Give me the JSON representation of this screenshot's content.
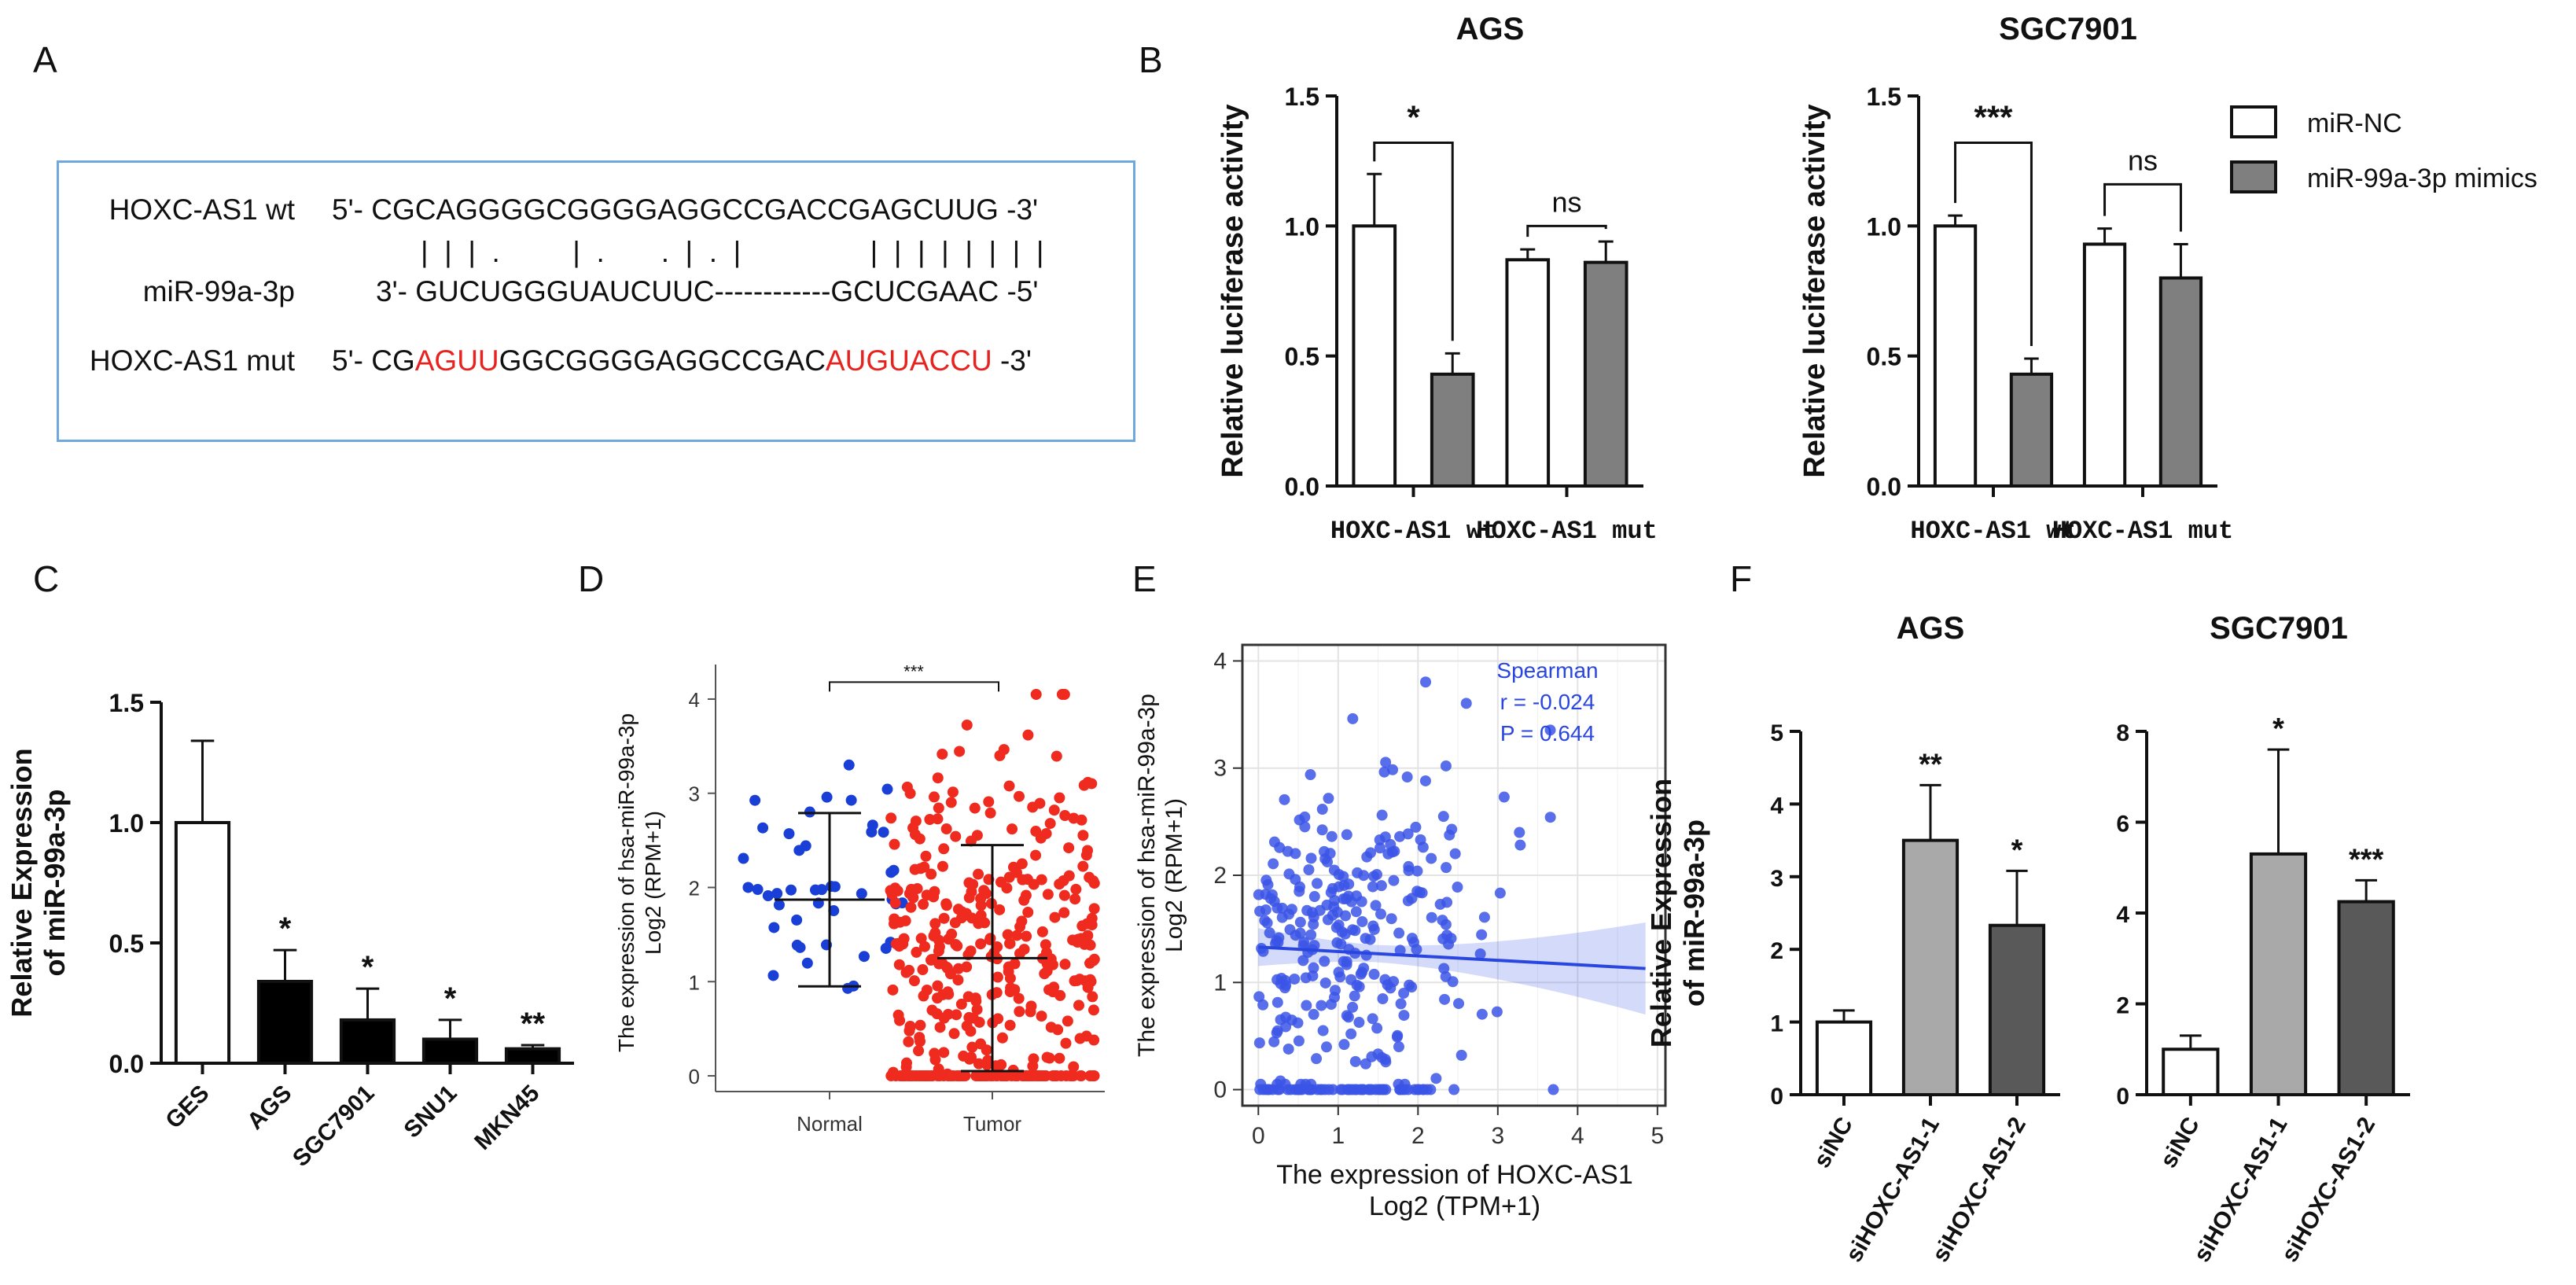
{
  "panels": {
    "A": {
      "label": "A",
      "rows": [
        {
          "name": "HOXC-AS1 wt",
          "prefix": "5'- ",
          "segments": [
            {
              "text": "CGCAGGGGCGGGGAGGCCGACCGAGCUUG",
              "red": false
            }
          ],
          "suffix": " -3'"
        },
        {
          "name": "",
          "prefix": "",
          "segments": [
            {
              "text": "|  |  |  .         |  .       .  |  .  |                |  |  |  |  |  |  |  |",
              "red": false
            }
          ],
          "suffix": ""
        },
        {
          "name": "miR-99a-3p",
          "prefix": "3'- ",
          "segments": [
            {
              "text": "GUCUGGGUAUCUUC------------GCUCGAAC",
              "red": false
            }
          ],
          "suffix": " -5'"
        },
        {
          "name": "HOXC-AS1 mut",
          "prefix": "5'- ",
          "segments": [
            {
              "text": "CG",
              "red": false
            },
            {
              "text": "AGUU",
              "red": true
            },
            {
              "text": "GGCGGGGAGGCCGAC",
              "red": false
            },
            {
              "text": "AUGUACCU",
              "red": true
            }
          ],
          "suffix": " -3'"
        }
      ]
    },
    "B": {
      "label": "B"
    },
    "C": {
      "label": "C"
    },
    "D": {
      "label": "D"
    },
    "E": {
      "label": "E"
    },
    "F": {
      "label": "F"
    }
  },
  "legend_B": {
    "items": [
      {
        "label": "miR-NC",
        "color": "#ffffff"
      },
      {
        "label": "miR-99a-3p mimics",
        "color": "#7f7f7f"
      }
    ]
  },
  "chart_data": [
    {
      "id": "B1",
      "type": "bar",
      "title": "AGS",
      "ylabel": "Relative luciferase activity",
      "ylim": [
        0,
        1.5
      ],
      "yticks": [
        "0.0",
        "0.5",
        "1.0",
        "1.5"
      ],
      "groups": [
        "HOXC-AS1 wt",
        "HOXC-AS1 mut"
      ],
      "series": [
        {
          "name": "miR-NC",
          "color": "#ffffff",
          "values": [
            1.0,
            0.87
          ],
          "errors": [
            0.2,
            0.04
          ]
        },
        {
          "name": "miR-99a-3p mimics",
          "color": "#7f7f7f",
          "values": [
            0.43,
            0.86
          ],
          "errors": [
            0.08,
            0.08
          ]
        }
      ],
      "comparisons": [
        {
          "group": 0,
          "label": "*",
          "y": 1.32
        },
        {
          "group": 1,
          "label": "ns",
          "y": 1.0
        }
      ]
    },
    {
      "id": "B2",
      "type": "bar",
      "title": "SGC7901",
      "ylabel": "Relative luciferase activity",
      "ylim": [
        0,
        1.5
      ],
      "yticks": [
        "0.0",
        "0.5",
        "1.0",
        "1.5"
      ],
      "groups": [
        "HOXC-AS1 wt",
        "HOXC-AS1 mut"
      ],
      "series": [
        {
          "name": "miR-NC",
          "color": "#ffffff",
          "values": [
            1.0,
            0.93
          ],
          "errors": [
            0.04,
            0.06
          ]
        },
        {
          "name": "miR-99a-3p mimics",
          "color": "#7f7f7f",
          "values": [
            0.43,
            0.8
          ],
          "errors": [
            0.06,
            0.13
          ]
        }
      ],
      "comparisons": [
        {
          "group": 0,
          "label": "***",
          "y": 1.32
        },
        {
          "group": 1,
          "label": "ns",
          "y": 1.16
        }
      ]
    },
    {
      "id": "C",
      "type": "bar",
      "title": "",
      "ylabel": "Relative Expression\nof miR-99a-3p",
      "ylim": [
        0,
        1.5
      ],
      "yticks": [
        "0.0",
        "0.5",
        "1.0",
        "1.5"
      ],
      "categories": [
        "GES",
        "AGS",
        "SGC7901",
        "SNU1",
        "MKN45"
      ],
      "values": [
        1.0,
        0.34,
        0.18,
        0.1,
        0.06
      ],
      "errors": [
        0.34,
        0.13,
        0.13,
        0.08,
        0.015
      ],
      "colors": [
        "#ffffff",
        "#000000",
        "#000000",
        "#000000",
        "#000000"
      ],
      "significance": [
        "",
        "*",
        "*",
        "*",
        "**"
      ]
    },
    {
      "id": "D",
      "type": "scatter",
      "title": "",
      "ylabel": "The expression of hsa-miR-99a-3p",
      "ylabel2": "Log2 (RPM+1)",
      "ylim": [
        -0.1,
        4.2
      ],
      "yticks": [
        "0",
        "1",
        "2",
        "3",
        "4"
      ],
      "groups": [
        {
          "name": "Normal",
          "color": "#1a3fd6",
          "n": 45,
          "mean": 1.87,
          "sd": 0.92,
          "max": 3.3,
          "min": 0.37
        },
        {
          "name": "Tumor",
          "color": "#ef2a1f",
          "n": 420,
          "mean": 1.25,
          "sd": 1.2,
          "max": 4.05,
          "min": 0.0
        }
      ],
      "significance": "***"
    },
    {
      "id": "E",
      "type": "scatter",
      "title": "",
      "xlabel": "The expression of HOXC-AS1",
      "xlabel2": "Log2 (TPM+1)",
      "ylabel": "The expression of hsa-miR-99a-3p",
      "ylabel2": "Log2 (RPM+1)",
      "xlim": [
        -0.2,
        5.1
      ],
      "ylim": [
        -0.15,
        4.15
      ],
      "xticks": [
        "0",
        "1",
        "2",
        "3",
        "4",
        "5"
      ],
      "yticks": [
        "0",
        "1",
        "2",
        "3",
        "4"
      ],
      "n": 330,
      "fit": {
        "x0": 0,
        "y0": 1.33,
        "x1": 4.85,
        "y1": 1.13
      },
      "annotation": {
        "method": "Spearman",
        "r": "r = -0.024",
        "p": "P = 0.644"
      }
    },
    {
      "id": "F1",
      "type": "bar",
      "title": "AGS",
      "ylabel": "Relative Expression\nof miR-99a-3p",
      "ylim": [
        0,
        5
      ],
      "yticks": [
        "0",
        "1",
        "2",
        "3",
        "4",
        "5"
      ],
      "categories": [
        "siNC",
        "siHOXC-AS1-1",
        "siHOXC-AS1-2"
      ],
      "values": [
        1.0,
        3.5,
        2.33
      ],
      "errors": [
        0.16,
        0.76,
        0.75
      ],
      "colors": [
        "#ffffff",
        "#a9a9a9",
        "#595959"
      ],
      "significance": [
        "",
        "**",
        "*"
      ]
    },
    {
      "id": "F2",
      "type": "bar",
      "title": "SGC7901",
      "ylabel": "",
      "ylim": [
        0,
        8
      ],
      "yticks": [
        "0",
        "2",
        "4",
        "6",
        "8"
      ],
      "categories": [
        "siNC",
        "siHOXC-AS1-1",
        "siHOXC-AS1-2"
      ],
      "values": [
        1.0,
        5.3,
        4.25
      ],
      "errors": [
        0.3,
        2.3,
        0.47
      ],
      "colors": [
        "#ffffff",
        "#a9a9a9",
        "#595959"
      ],
      "significance": [
        "",
        "*",
        "***"
      ]
    }
  ]
}
